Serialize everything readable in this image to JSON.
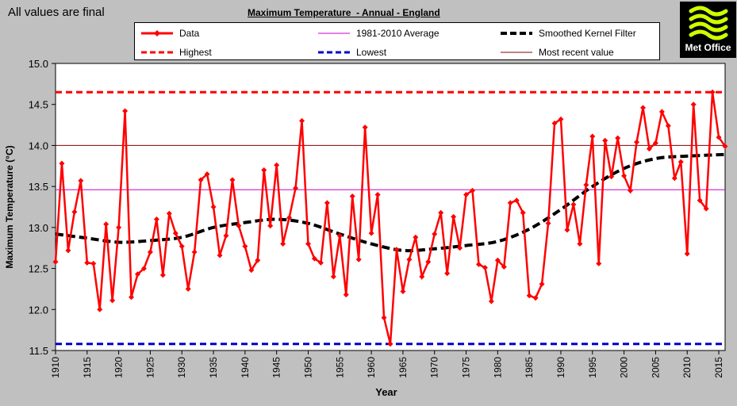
{
  "status_text": "All values are final",
  "logo": {
    "text": "Met Office",
    "colors": {
      "background": "#000000",
      "mark": "#ccff00"
    }
  },
  "legend": {
    "data": "Data",
    "average": "1981-2010 Average",
    "smoothed": "Smoothed Kernel Filter",
    "highest": "Highest",
    "lowest": "Lowest",
    "recent": "Most recent value"
  },
  "colors": {
    "data": "#ff0000",
    "average": "#cc00cc",
    "smoothed": "#000000",
    "highest": "#ff0000",
    "lowest": "#0000cc",
    "recent": "#800000",
    "plot_bg": "#ffffff",
    "page_bg": "#c0c0c0"
  },
  "chart_data": {
    "type": "line",
    "title": "Maximum Temperature  - Annual - England",
    "xlabel": "Year",
    "ylabel": "Maximum Temperature  (°C)",
    "xlim": [
      1910,
      2016
    ],
    "ylim": [
      11.5,
      15.0
    ],
    "x_ticks": [
      1910,
      1915,
      1920,
      1925,
      1930,
      1935,
      1940,
      1945,
      1950,
      1955,
      1960,
      1965,
      1970,
      1975,
      1980,
      1985,
      1990,
      1995,
      2000,
      2005,
      2010,
      2015
    ],
    "y_ticks": [
      "11.5",
      "12.0",
      "12.5",
      "13.0",
      "13.5",
      "14.0",
      "14.5",
      "15.0"
    ],
    "grid": false,
    "legend_position": "top",
    "reference_lines": {
      "average": 13.46,
      "highest": 14.65,
      "lowest": 11.58,
      "most_recent": 14.0
    },
    "series": [
      {
        "name": "Data",
        "x": [
          1910,
          1911,
          1912,
          1913,
          1914,
          1915,
          1916,
          1917,
          1918,
          1919,
          1920,
          1921,
          1922,
          1923,
          1924,
          1925,
          1926,
          1927,
          1928,
          1929,
          1930,
          1931,
          1932,
          1933,
          1934,
          1935,
          1936,
          1937,
          1938,
          1939,
          1940,
          1941,
          1942,
          1943,
          1944,
          1945,
          1946,
          1947,
          1948,
          1949,
          1950,
          1951,
          1952,
          1953,
          1954,
          1955,
          1956,
          1957,
          1958,
          1959,
          1960,
          1961,
          1962,
          1963,
          1964,
          1965,
          1966,
          1967,
          1968,
          1969,
          1970,
          1971,
          1972,
          1973,
          1974,
          1975,
          1976,
          1977,
          1978,
          1979,
          1980,
          1981,
          1982,
          1983,
          1984,
          1985,
          1986,
          1987,
          1988,
          1989,
          1990,
          1991,
          1992,
          1993,
          1994,
          1995,
          1996,
          1997,
          1998,
          1999,
          2000,
          2001,
          2002,
          2003,
          2004,
          2005,
          2006,
          2007,
          2008,
          2009,
          2010,
          2011,
          2012,
          2013,
          2014,
          2015,
          2016
        ],
        "values": [
          12.58,
          13.78,
          12.72,
          13.19,
          13.57,
          12.57,
          12.56,
          12.0,
          13.04,
          12.11,
          13.0,
          14.42,
          12.15,
          12.43,
          12.5,
          12.7,
          13.1,
          12.42,
          13.17,
          12.93,
          12.77,
          12.25,
          12.7,
          13.58,
          13.65,
          13.25,
          12.66,
          12.9,
          13.58,
          13.02,
          12.77,
          12.48,
          12.6,
          13.7,
          13.02,
          13.76,
          12.8,
          13.12,
          13.48,
          14.3,
          12.8,
          12.62,
          12.57,
          13.3,
          12.4,
          12.9,
          12.18,
          13.38,
          12.61,
          14.22,
          12.93,
          13.4,
          11.9,
          11.58,
          12.73,
          12.22,
          12.61,
          12.88,
          12.4,
          12.58,
          12.92,
          13.18,
          12.44,
          13.13,
          12.75,
          13.4,
          13.45,
          12.55,
          12.51,
          12.1,
          12.6,
          12.52,
          13.3,
          13.33,
          13.18,
          12.17,
          12.14,
          12.31,
          13.05,
          14.27,
          14.32,
          12.97,
          13.28,
          12.8,
          13.52,
          14.11,
          12.56,
          14.06,
          13.62,
          14.09,
          13.63,
          13.45,
          14.04,
          14.46,
          13.96,
          14.03,
          14.41,
          14.24,
          13.6,
          13.8,
          12.68,
          14.5,
          13.33,
          13.23,
          14.65,
          14.1,
          13.99
        ]
      },
      {
        "name": "Smoothed Kernel Filter",
        "x": [
          1910,
          1915,
          1920,
          1925,
          1930,
          1935,
          1940,
          1945,
          1950,
          1955,
          1960,
          1965,
          1970,
          1975,
          1980,
          1985,
          1990,
          1995,
          2000,
          2005,
          2010,
          2016
        ],
        "values": [
          12.92,
          12.87,
          12.82,
          12.84,
          12.88,
          13.0,
          13.06,
          13.1,
          13.05,
          12.92,
          12.8,
          12.72,
          12.74,
          12.78,
          12.83,
          12.98,
          13.22,
          13.5,
          13.72,
          13.84,
          13.87,
          13.89
        ]
      }
    ]
  }
}
